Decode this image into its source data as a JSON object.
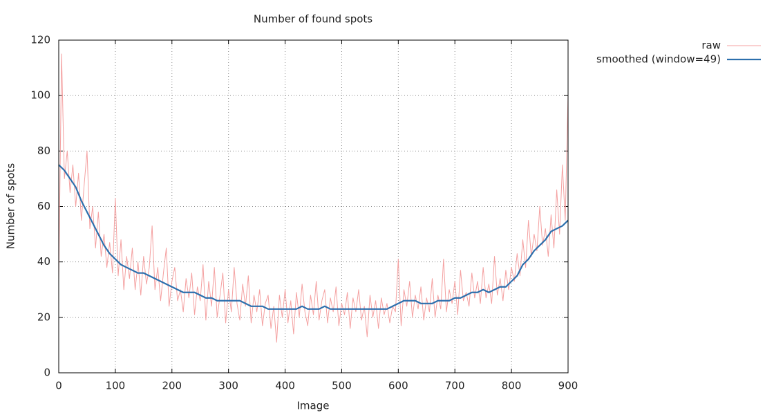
{
  "chart_data": {
    "type": "line",
    "title": "Number of found spots",
    "xlabel": "Image",
    "ylabel": "Number of spots",
    "xlim": [
      0,
      900
    ],
    "xticks": [
      0,
      100,
      200,
      300,
      400,
      500,
      600,
      700,
      800,
      900
    ],
    "ylim": [
      0,
      120
    ],
    "yticks": [
      0,
      20,
      40,
      60,
      80,
      100,
      120
    ],
    "grid": true,
    "legend": "outside-top-right",
    "series": [
      {
        "name": "raw",
        "color": "#f4a0a0",
        "width": 1,
        "x": [
          0,
          5,
          10,
          15,
          20,
          25,
          30,
          35,
          40,
          45,
          50,
          55,
          60,
          65,
          70,
          75,
          80,
          85,
          90,
          95,
          100,
          105,
          110,
          115,
          120,
          125,
          130,
          135,
          140,
          145,
          150,
          155,
          160,
          165,
          170,
          175,
          180,
          185,
          190,
          195,
          200,
          205,
          210,
          215,
          220,
          225,
          230,
          235,
          240,
          245,
          250,
          255,
          260,
          265,
          270,
          275,
          280,
          285,
          290,
          295,
          300,
          305,
          310,
          315,
          320,
          325,
          330,
          335,
          340,
          345,
          350,
          355,
          360,
          365,
          370,
          375,
          380,
          385,
          390,
          395,
          400,
          405,
          410,
          415,
          420,
          425,
          430,
          435,
          440,
          445,
          450,
          455,
          460,
          465,
          470,
          475,
          480,
          485,
          490,
          495,
          500,
          505,
          510,
          515,
          520,
          525,
          530,
          535,
          540,
          545,
          550,
          555,
          560,
          565,
          570,
          575,
          580,
          585,
          590,
          595,
          600,
          605,
          610,
          615,
          620,
          625,
          630,
          635,
          640,
          645,
          650,
          655,
          660,
          665,
          670,
          675,
          680,
          685,
          690,
          695,
          700,
          705,
          710,
          715,
          720,
          725,
          730,
          735,
          740,
          745,
          750,
          755,
          760,
          765,
          770,
          775,
          780,
          785,
          790,
          795,
          800,
          805,
          810,
          815,
          820,
          825,
          830,
          835,
          840,
          845,
          850,
          855,
          860,
          865,
          870,
          875,
          880,
          885,
          890,
          895,
          900
        ],
        "values": [
          33,
          115,
          70,
          80,
          65,
          75,
          60,
          72,
          55,
          68,
          80,
          52,
          60,
          45,
          58,
          42,
          50,
          38,
          47,
          36,
          63,
          35,
          48,
          30,
          42,
          34,
          45,
          30,
          40,
          28,
          42,
          32,
          38,
          53,
          30,
          38,
          26,
          36,
          45,
          24,
          33,
          38,
          26,
          30,
          22,
          34,
          27,
          36,
          21,
          31,
          26,
          39,
          19,
          33,
          24,
          38,
          20,
          28,
          36,
          18,
          30,
          22,
          38,
          25,
          19,
          32,
          24,
          35,
          18,
          28,
          22,
          30,
          17,
          25,
          28,
          16,
          24,
          11,
          28,
          20,
          30,
          18,
          26,
          14,
          29,
          20,
          32,
          22,
          17,
          28,
          21,
          33,
          19,
          26,
          30,
          18,
          27,
          22,
          31,
          17,
          25,
          21,
          29,
          16,
          27,
          22,
          30,
          19,
          24,
          13,
          28,
          20,
          26,
          16,
          27,
          21,
          25,
          18,
          24,
          22,
          41,
          17,
          30,
          24,
          33,
          20,
          28,
          23,
          31,
          19,
          27,
          22,
          34,
          20,
          28,
          23,
          41,
          22,
          30,
          25,
          33,
          21,
          37,
          26,
          29,
          24,
          36,
          27,
          33,
          25,
          38,
          27,
          32,
          25,
          42,
          28,
          34,
          26,
          37,
          30,
          38,
          33,
          43,
          35,
          48,
          38,
          55,
          42,
          50,
          44,
          60,
          46,
          52,
          42,
          57,
          45,
          66,
          50,
          75,
          55,
          100
        ]
      },
      {
        "name": "smoothed (window=49)",
        "color": "#2c6fad",
        "width": 2.2,
        "x": [
          0,
          10,
          20,
          30,
          40,
          50,
          60,
          70,
          80,
          90,
          100,
          110,
          120,
          130,
          140,
          150,
          160,
          170,
          180,
          190,
          200,
          210,
          220,
          230,
          240,
          250,
          260,
          270,
          280,
          290,
          300,
          310,
          320,
          330,
          340,
          350,
          360,
          370,
          380,
          390,
          400,
          410,
          420,
          430,
          440,
          450,
          460,
          470,
          480,
          490,
          500,
          510,
          520,
          530,
          540,
          550,
          560,
          570,
          580,
          590,
          600,
          610,
          620,
          630,
          640,
          650,
          660,
          670,
          680,
          690,
          700,
          710,
          720,
          730,
          740,
          750,
          760,
          770,
          780,
          790,
          800,
          810,
          820,
          830,
          840,
          850,
          860,
          870,
          880,
          890,
          900
        ],
        "values": [
          75,
          73,
          70,
          67,
          62,
          58,
          54,
          50,
          46,
          43,
          41,
          39,
          38,
          37,
          36,
          36,
          35,
          34,
          33,
          32,
          31,
          30,
          29,
          29,
          29,
          28,
          27,
          27,
          26,
          26,
          26,
          26,
          26,
          25,
          24,
          24,
          24,
          23,
          23,
          23,
          23,
          23,
          23,
          24,
          23,
          23,
          23,
          24,
          23,
          23,
          23,
          23,
          23,
          23,
          23,
          23,
          23,
          23,
          23,
          24,
          25,
          26,
          26,
          26,
          25,
          25,
          25,
          26,
          26,
          26,
          27,
          27,
          28,
          29,
          29,
          30,
          29,
          30,
          31,
          31,
          33,
          35,
          39,
          41,
          44,
          46,
          48,
          51,
          52,
          53,
          55
        ]
      }
    ]
  }
}
